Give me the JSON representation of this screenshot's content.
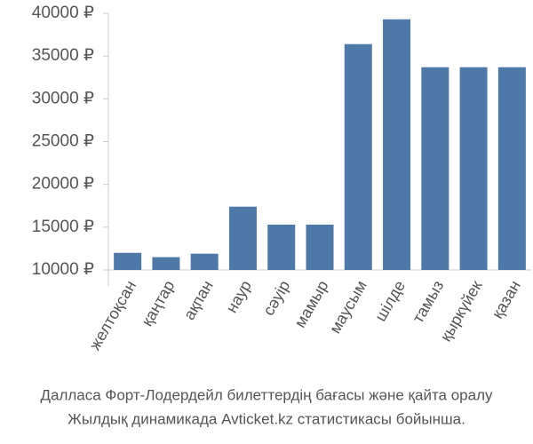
{
  "chart_data": {
    "type": "bar",
    "categories": [
      "желтоқсан",
      "қаңтар",
      "ақпан",
      "наур",
      "сәуір",
      "мамыр",
      "маусым",
      "шілде",
      "тамыз",
      "қыркүйек",
      "қазан"
    ],
    "values": [
      12000,
      11500,
      11900,
      17400,
      15300,
      15300,
      36400,
      39300,
      33700,
      33700,
      33700
    ],
    "color": "#4e78a8",
    "ylim": [
      10000,
      40000
    ],
    "yticks": [
      {
        "value": 10000,
        "label": "10000 ₽"
      },
      {
        "value": 15000,
        "label": "15000 ₽"
      },
      {
        "value": 20000,
        "label": "20000 ₽"
      },
      {
        "value": 25000,
        "label": "25000 ₽"
      },
      {
        "value": 30000,
        "label": "30000 ₽"
      },
      {
        "value": 35000,
        "label": "35000 ₽"
      },
      {
        "value": 40000,
        "label": "40000 ₽"
      }
    ],
    "grid": false,
    "caption": [
      "Далласа Форт-Лодердейл билеттердің бағасы және қайта оралу",
      "Жылдық динамикада Avticket.kz статистикасы бойынша."
    ]
  }
}
